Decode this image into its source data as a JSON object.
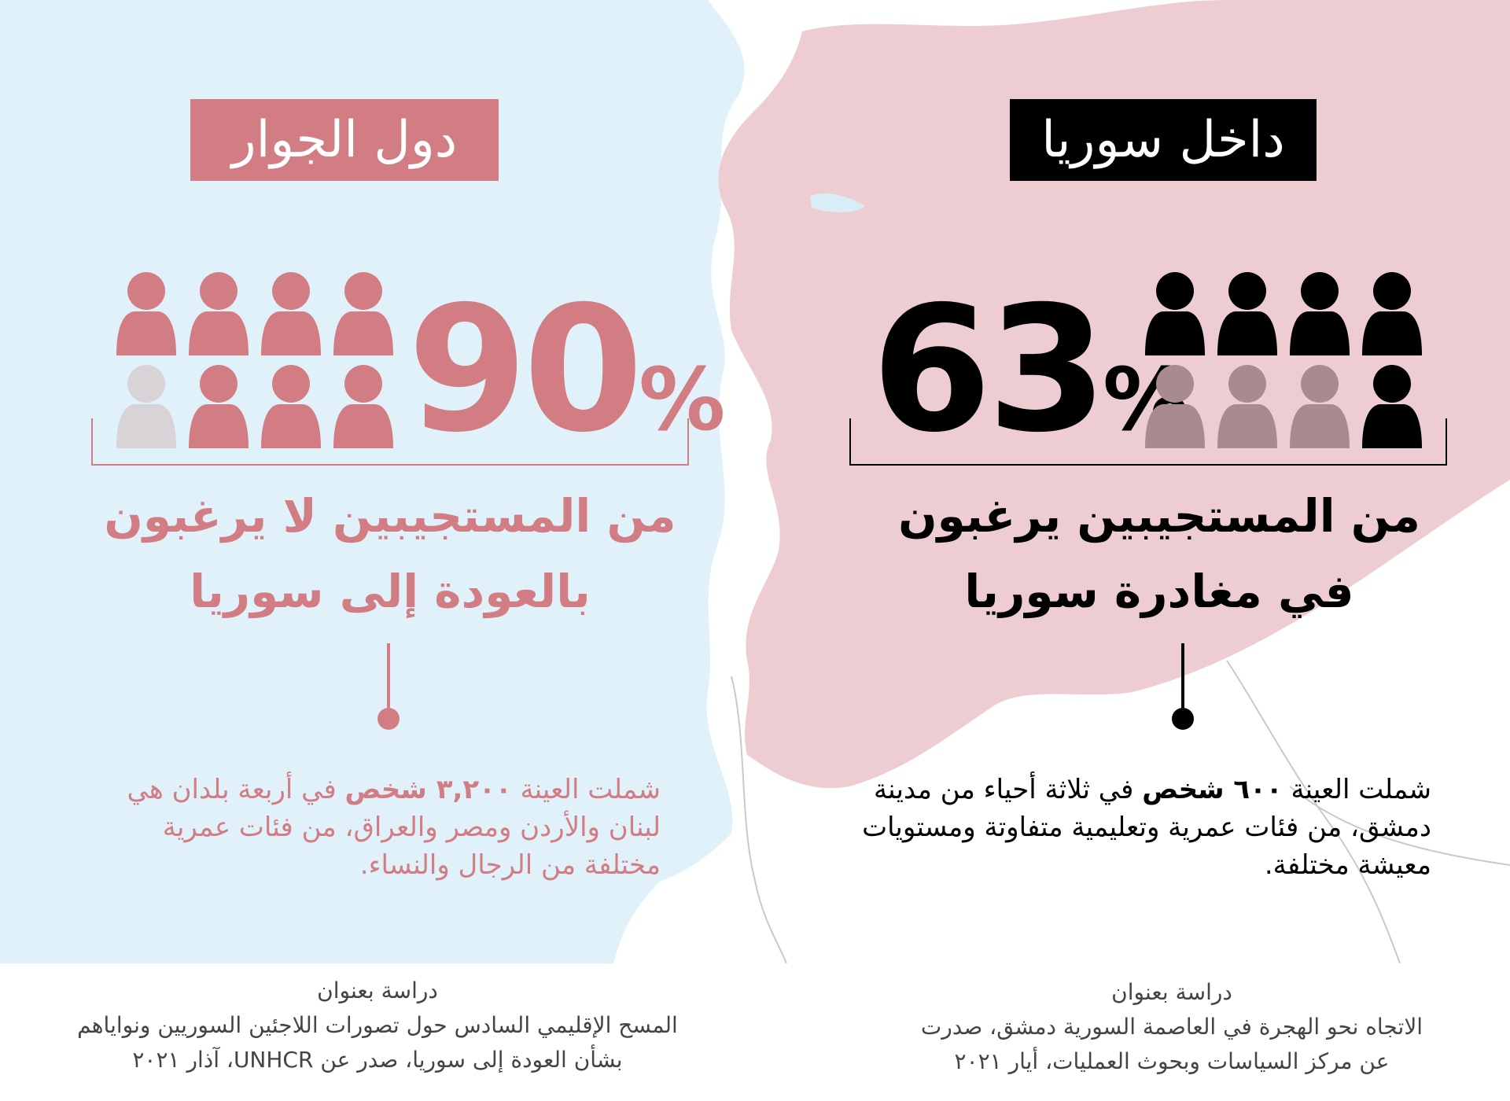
{
  "colors": {
    "map_left": "#e0f1fa",
    "map_right": "#edcdd1",
    "accent_left": "#d27d83",
    "accent_right": "#000000",
    "person_dim_left": "#d8d3d6",
    "person_dim_right": "#a88b8e"
  },
  "left": {
    "tag": "دول الجوار",
    "percent_number": "90",
    "percent_sign": "%",
    "icons": {
      "total": 8,
      "highlighted": 7,
      "icon": "person-icon"
    },
    "headline_line1": "من المستجيبين لا يرغبون",
    "headline_line2": "بالعودة إلى سوريا",
    "body_prefix": "شملت العينة ",
    "body_bold": "٣,٢٠٠ شخص",
    "body_rest": " في أربعة بلدان هي لبنان والأردن ومصر والعراق، من فئات عمرية مختلفة من الرجال والنساء.",
    "source_line1": "دراسة بعنوان",
    "source_line2": "المسح الإقليمي السادس حول تصورات اللاجئين السوريين ونواياهم",
    "source_line3": "بشأن العودة إلى سوريا، صدر عن UNHCR، آذار ٢٠٢١"
  },
  "right": {
    "tag": "داخل سوريا",
    "percent_number": "63",
    "percent_sign": "%",
    "icons": {
      "total": 8,
      "highlighted": 5,
      "icon": "person-icon"
    },
    "headline_line1": "من المستجيبين يرغبون",
    "headline_line2": "في مغادرة سوريا",
    "body_prefix": "شملت العينة ",
    "body_bold": "٦٠٠ شخص",
    "body_rest": " في ثلاثة أحياء من مدينة دمشق، من فئات عمرية وتعليمية متفاوتة ومستويات معيشة مختلفة.",
    "source_line1": "دراسة بعنوان",
    "source_line2": "الاتجاه نحو الهجرة في العاصمة السورية دمشق، صدرت",
    "source_line3": "عن مركز السياسات وبحوث العمليات، أيار ٢٠٢١"
  }
}
